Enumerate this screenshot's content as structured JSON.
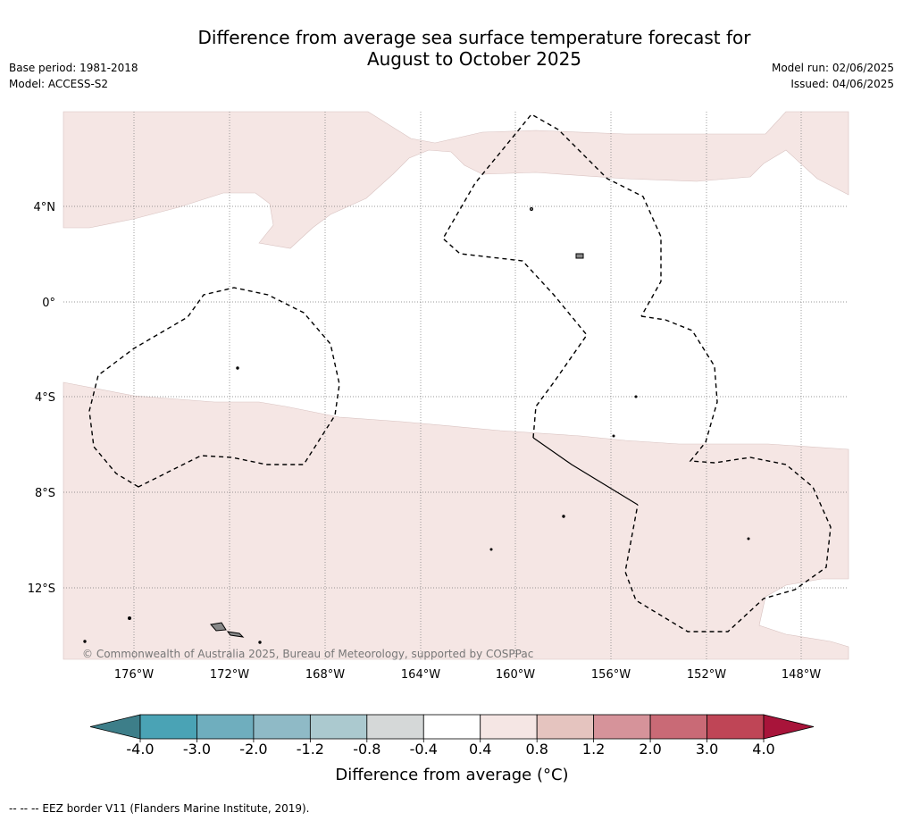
{
  "title_line1": "Difference from average sea surface temperature forecast for",
  "title_line2": "August to October 2025",
  "base_period": "Base period: 1981-2018",
  "model": "Model: ACCESS-S2",
  "model_run": "Model run: 02/06/2025",
  "issued": "Issued: 04/06/2025",
  "copyright": "© Commonwealth of Australia 2025, Bureau of Meteorology, supported by COSPPac",
  "lat_labels": [
    "4°N",
    "0°",
    "4°S",
    "8°S",
    "12°S"
  ],
  "lon_labels": [
    "176°W",
    "172°W",
    "168°W",
    "164°W",
    "160°W",
    "156°W",
    "152°W",
    "148°W"
  ],
  "colorbar": {
    "ticks": [
      "-4.0",
      "-3.0",
      "-2.0",
      "-1.2",
      "-0.8",
      "-0.4",
      "0.4",
      "0.8",
      "1.2",
      "2.0",
      "3.0",
      "4.0"
    ],
    "colors": [
      "#4aa3b5",
      "#6faebe",
      "#8fbac6",
      "#abc9cf",
      "#d5d8d8",
      "#ffffff",
      "#f5e6e4",
      "#e5c4bf",
      "#d6939a",
      "#c96a76",
      "#bf4556"
    ],
    "low_extend_color": "#3d7e89",
    "high_extend_color": "#a8143a",
    "label": "Difference from average (°C)"
  },
  "legend_note": "--  --  -- EEZ border V11 (Flanders Marine Institute, 2019).",
  "anomaly_fill_color": "#f5e6e4"
}
